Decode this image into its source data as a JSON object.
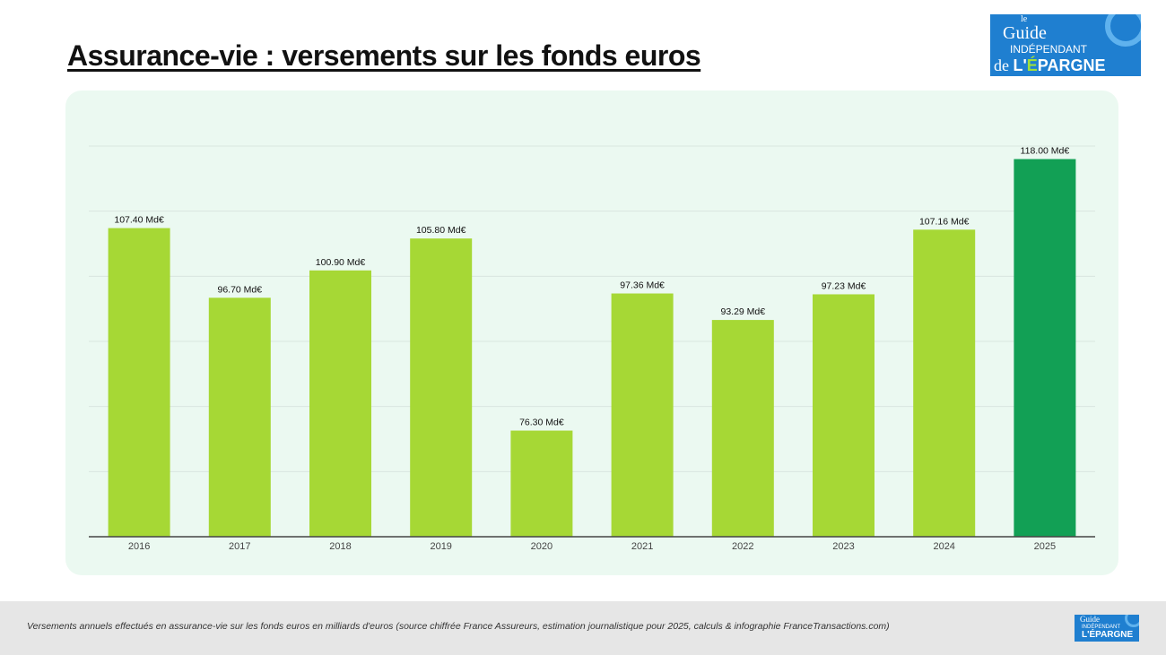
{
  "title": "Assurance-vie : versements sur les fonds euros",
  "logo": {
    "text": "le Guide INDÉPENDANT de L'ÉPARGNE FranceTransactions.com"
  },
  "footer": {
    "note": "Versements annuels effectués en assurance-vie sur les fonds euros en milliards d'euros (source chiffrée France Assureurs, estimation journalistique pour 2025, calculs & infographie FranceTransactions.com)"
  },
  "colors": {
    "bar": "#a6d835",
    "highlight": "#12a055",
    "panel": "#ebf9f1",
    "logo": "#1f7fd0"
  },
  "chart_data": {
    "type": "bar",
    "categories": [
      "2016",
      "2017",
      "2018",
      "2019",
      "2020",
      "2021",
      "2022",
      "2023",
      "2024",
      "2025"
    ],
    "values": [
      107.4,
      96.7,
      100.9,
      105.8,
      76.3,
      97.36,
      93.29,
      97.23,
      107.16,
      118.0
    ],
    "data_labels": [
      "107.40 Md€",
      "96.70 Md€",
      "100.90 Md€",
      "105.80 Md€",
      "76.30 Md€",
      "97.36 Md€",
      "93.29 Md€",
      "97.23 Md€",
      "107.16 Md€",
      "118.00 Md€"
    ],
    "highlighted_category": "2025",
    "unit": "Md€",
    "ylim": [
      60,
      120
    ],
    "ytick_step": 10,
    "grid": true,
    "y_tick_labels_shown": false
  }
}
